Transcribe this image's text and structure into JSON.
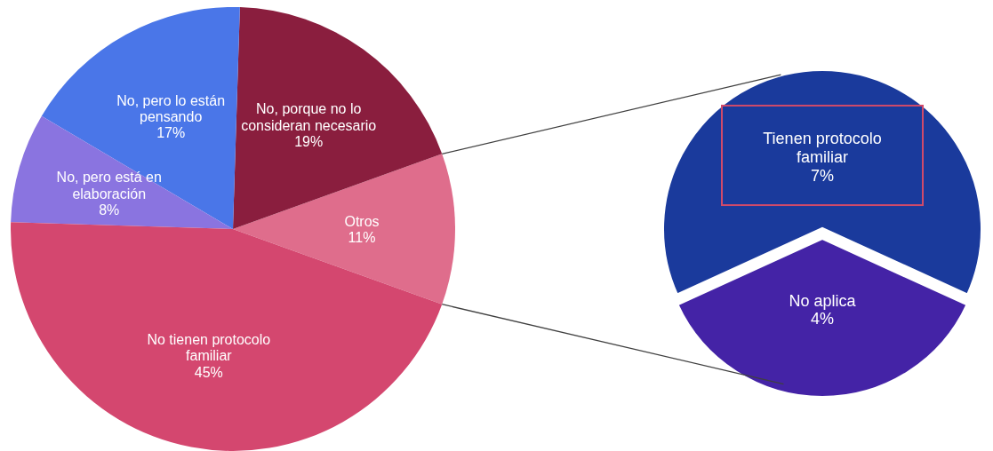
{
  "chart_data": [
    {
      "type": "pie",
      "categories": [
        "Otros",
        "No, porque no lo consideran necesario",
        "No, pero lo están pensando",
        "No, pero está en elaboración",
        "No tienen protocolo familiar"
      ],
      "values": [
        11,
        19,
        17,
        8,
        45
      ],
      "value_labels": [
        "11%",
        "19%",
        "17%",
        "8%",
        "45%"
      ],
      "colors": [
        "#df6d8c",
        "#8a1e3e",
        "#4a76e8",
        "#8a74e0",
        "#d4476f"
      ]
    },
    {
      "type": "pie",
      "categories": [
        "Tienen protocolo familiar",
        "No aplica"
      ],
      "values": [
        7,
        4
      ],
      "value_labels": [
        "7%",
        "4%"
      ],
      "colors": [
        "#1a3a9c",
        "#4423a6"
      ]
    }
  ]
}
